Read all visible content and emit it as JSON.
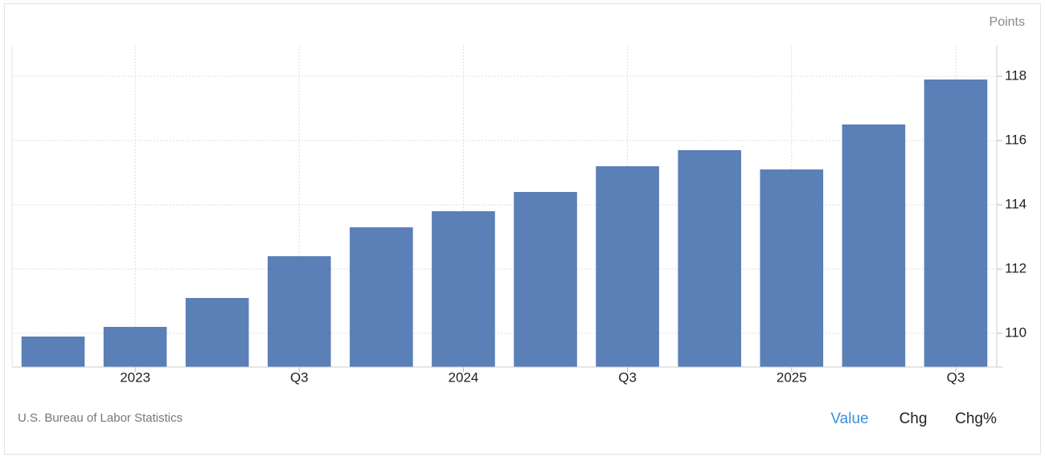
{
  "chart_data": {
    "type": "bar",
    "y_label": "Points",
    "categories": [
      null,
      "2023",
      null,
      "Q3",
      null,
      "2024",
      null,
      "Q3",
      null,
      "2025",
      null,
      "Q3"
    ],
    "values": [
      109.9,
      110.2,
      111.1,
      112.4,
      113.3,
      113.8,
      114.4,
      115.2,
      115.7,
      115.1,
      116.5,
      117.9
    ],
    "color": "#5b7fb7",
    "ylim": [
      108.95,
      118.95
    ],
    "yticks": [
      110,
      112,
      114,
      116,
      118
    ],
    "grid": true,
    "source": "U.S. Bureau of Labor Statistics",
    "buttons": [
      "Value",
      "Chg",
      "Chg%"
    ],
    "active_button": 0
  }
}
